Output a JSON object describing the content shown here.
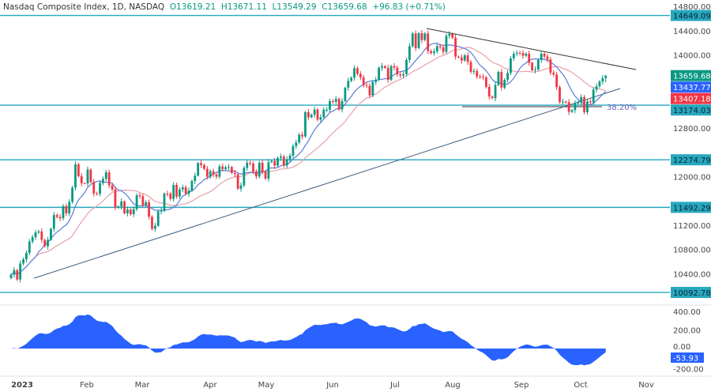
{
  "header": {
    "symbol": "Nasdaq Composite Index, 1D, NASDAQ",
    "open": "O13619.21",
    "high": "H13671.11",
    "low": "L13549.29",
    "close": "C13659.68",
    "change": "+96.83 (+0.71%)"
  },
  "colors": {
    "up": "#089981",
    "down": "#f23645",
    "level": "#26a8be",
    "ma_fast": "#5b7bd6",
    "ma_slow": "#e8a0a8",
    "oscillator": "#2962ff",
    "last_price": "#089981"
  },
  "chart_data": {
    "type": "candlestick",
    "price_axis": {
      "ticks": [
        14800,
        14400,
        14000,
        12800,
        12000,
        11200,
        10800,
        10400
      ],
      "ylim": [
        10000,
        14800
      ]
    },
    "x_ticks": [
      "2023",
      "Feb",
      "Mar",
      "Apr",
      "May",
      "Jun",
      "Jul",
      "Aug",
      "Sep",
      "Oct",
      "Nov"
    ],
    "month_lengths": [
      20,
      19,
      23,
      19,
      22,
      21,
      20,
      23,
      20,
      8
    ],
    "closes": [
      10386,
      10459,
      10305,
      10569,
      10636,
      10742,
      10931,
      11001,
      11079,
      11096,
      10957,
      10852,
      10958,
      11140,
      11365,
      11334,
      11313,
      11512,
      11394,
      11584,
      11816,
      12201,
      12007,
      11888,
      11887,
      12114,
      11910,
      11719,
      11718,
      11892,
      11961,
      12070,
      11855,
      11787,
      11492,
      11507,
      11590,
      11394,
      11456,
      11379,
      11463,
      11690,
      11675,
      11530,
      11576,
      11338,
      11138,
      11189,
      11428,
      11434,
      11718,
      11717,
      11631,
      11860,
      11670,
      11787,
      11823,
      11716,
      11768,
      11926,
      12013,
      12222,
      12189,
      12126,
      11996,
      12087,
      12031,
      11997,
      12166,
      12123,
      12153,
      12157,
      12059,
      12037,
      11799,
      11854,
      12142,
      12226,
      12212,
      12080,
      12000,
      12226,
      12080,
      11966,
      12236,
      12256,
      12179,
      12306,
      12328,
      12179,
      12285,
      12343,
      12500,
      12560,
      12688,
      12659,
      13059,
      12975,
      13017,
      13101,
      12935,
      12975,
      13100,
      13100,
      13240,
      13229,
      13276,
      13104,
      13239,
      13461,
      13573,
      13626,
      13782,
      13689,
      13630,
      13502,
      13492,
      13335,
      13555,
      13591,
      13788,
      13816,
      13787,
      13591,
      13816,
      13791,
      13679,
      13661,
      13685,
      13918,
      14144,
      14353,
      14113,
      14358,
      14244,
      14353,
      14063,
      14032,
      14058,
      14144,
      14127,
      14050,
      14316,
      14346,
      14283,
      13973,
      13959,
      13909,
      13994,
      13884,
      13722,
      13737,
      13645,
      13644,
      13631,
      13474,
      13316,
      13290,
      13506,
      13721,
      13463,
      13591,
      13705,
      13944,
      14019,
      14035,
      14031,
      13987,
      14020,
      13872,
      13748,
      13761,
      13917,
      14020,
      13974,
      13926,
      13708,
      13678,
      13469,
      13224,
      13230,
      13223,
      13063,
      13093,
      13201,
      13219,
      13307,
      13059,
      13236,
      13219,
      13431,
      13484,
      13562,
      13619,
      13660
    ],
    "levels": [
      14649.09,
      13174.03,
      12274.79,
      11492.29,
      10092.78
    ],
    "level_labels": [
      "14649.09",
      "13174.03",
      "12274.79",
      "11492.29",
      "10092.78"
    ],
    "price_tags": {
      "last": "13659.68",
      "ma_fast": "13437.77",
      "ma_slow": "13407.18"
    },
    "fib_label": "38.20%",
    "oscillator": {
      "ticks": [
        "400.00",
        "200.00",
        "0.00",
        "-200.00"
      ],
      "tick_values": [
        400,
        200,
        0,
        -200
      ],
      "last": "-53.93"
    }
  }
}
